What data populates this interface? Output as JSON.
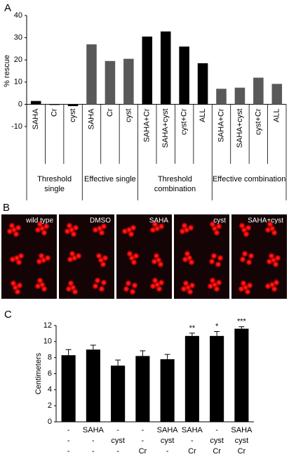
{
  "chart_data": [
    {
      "type": "bar",
      "panel": "A",
      "y_label": "% rescue",
      "categories": [
        "SAHA",
        "Cr",
        "cyst",
        "SAHA",
        "Cr",
        "cyst",
        "SAHA+Cr",
        "SAHA+cyst",
        "cyst+Cr",
        "ALL",
        "SAHA+Cr",
        "SAHA+cyst",
        "cyst+Cr",
        "ALL"
      ],
      "group": [
        "Threshold single",
        "Threshold single",
        "Threshold single",
        "Effective single",
        "Effective single",
        "Effective single",
        "Threshold combination",
        "Threshold combination",
        "Threshold combination",
        "Threshold combination",
        "Effective combination",
        "Effective combination",
        "Effective combination",
        "Effective combination"
      ],
      "values": [
        1.5,
        -0.3,
        -0.8,
        27,
        19.5,
        20.5,
        30.5,
        32.8,
        26,
        18.5,
        7,
        7.5,
        12,
        9.2
      ],
      "colors": [
        "#000000",
        "#000000",
        "#000000",
        "#595959",
        "#595959",
        "#595959",
        "#000000",
        "#000000",
        "#000000",
        "#000000",
        "#595959",
        "#595959",
        "#595959",
        "#595959"
      ],
      "ylim": [
        -10,
        40
      ],
      "yticks": [
        -10,
        0,
        10,
        20,
        30,
        40
      ]
    },
    {
      "type": "bar",
      "panel": "C",
      "y_label": "Centimeters",
      "category_rows": [
        [
          "-",
          "SAHA",
          "-",
          "-",
          "SAHA",
          "SAHA",
          "-",
          "SAHA"
        ],
        [
          "-",
          "-",
          "cyst",
          "-",
          "cyst",
          "-",
          "cyst",
          "cyst"
        ],
        [
          "-",
          "-",
          "-",
          "Cr",
          "-",
          "Cr",
          "Cr",
          "Cr"
        ]
      ],
      "values": [
        8.3,
        9.0,
        7.0,
        8.2,
        7.8,
        10.7,
        10.7,
        11.6
      ],
      "errors": [
        0.7,
        0.55,
        0.7,
        0.65,
        0.6,
        0.35,
        0.55,
        0.25
      ],
      "significance": [
        null,
        null,
        null,
        null,
        null,
        "**",
        "*",
        "***"
      ],
      "color": "#000000",
      "ylim": [
        0,
        12
      ],
      "yticks": [
        0,
        2,
        4,
        6,
        8,
        10,
        12
      ]
    }
  ],
  "image_panel": {
    "panel": "B",
    "images": [
      "wild type",
      "DMSO",
      "SAHA",
      "cyst",
      "SAHA+cyst"
    ]
  }
}
